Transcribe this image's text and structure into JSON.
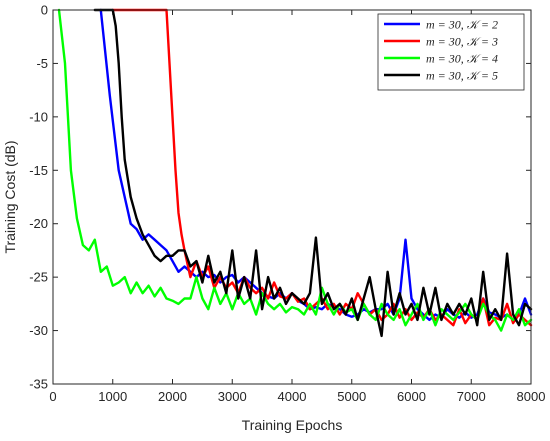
{
  "chart_data": {
    "type": "line",
    "title": "",
    "xlabel": "Training Epochs",
    "ylabel": "Training Cost (dB)",
    "xlim": [
      0,
      8000
    ],
    "ylim": [
      -35,
      0
    ],
    "xticks": [
      "0",
      "1000",
      "2000",
      "3000",
      "4000",
      "5000",
      "6000",
      "7000",
      "8000"
    ],
    "yticks": [
      "0",
      "-5",
      "-10",
      "-15",
      "-20",
      "-25",
      "-30",
      "-35"
    ],
    "xtick_values": [
      0,
      1000,
      2000,
      3000,
      4000,
      5000,
      6000,
      7000,
      8000
    ],
    "ytick_values": [
      0,
      -5,
      -10,
      -15,
      -20,
      -25,
      -30,
      -35
    ],
    "grid": false,
    "legend_position": "top-right",
    "series": [
      {
        "name": "m = 30, 𝒦 = 2",
        "color": "#0000ff",
        "x": [
          800,
          950,
          1100,
          1200,
          1300,
          1400,
          1500,
          1600,
          1700,
          1800,
          1900,
          2000,
          2100,
          2200,
          2300,
          2400,
          2500,
          2600,
          2700,
          2800,
          2900,
          3000,
          3100,
          3200,
          3300,
          3400,
          3500,
          3600,
          3700,
          3800,
          3900,
          4000,
          4100,
          4200,
          4300,
          4400,
          4500,
          4600,
          4700,
          4800,
          4900,
          5000,
          5100,
          5200,
          5300,
          5400,
          5500,
          5600,
          5700,
          5800,
          5900,
          6000,
          6100,
          6200,
          6300,
          6400,
          6500,
          6600,
          6700,
          6800,
          6900,
          7000,
          7100,
          7200,
          7300,
          7400,
          7500,
          7600,
          7700,
          7800,
          7900,
          8000
        ],
        "values": [
          0,
          -8,
          -15,
          -17.5,
          -20,
          -20.5,
          -21.5,
          -21,
          -21.5,
          -22,
          -22.5,
          -23.5,
          -24.5,
          -24,
          -24.5,
          -25,
          -24.5,
          -25,
          -24.8,
          -25.5,
          -25,
          -24.8,
          -25.5,
          -25,
          -25.5,
          -26,
          -26.5,
          -26.8,
          -27,
          -26.5,
          -27,
          -26.5,
          -27.2,
          -27.5,
          -28,
          -27.8,
          -28,
          -27.5,
          -27.8,
          -28,
          -28.5,
          -28.7,
          -28.5,
          -28,
          -28.3,
          -28,
          -28,
          -27.5,
          -28.5,
          -27,
          -21.5,
          -27,
          -28,
          -28.5,
          -29,
          -28.5,
          -28.8,
          -28,
          -28.5,
          -28.8,
          -28.3,
          -28.8,
          -28.5,
          -27,
          -28.3,
          -28.5,
          -28.8,
          -28.5,
          -29,
          -28.5,
          -27,
          -28.5
        ]
      },
      {
        "name": "m = 30, 𝒦 = 3",
        "color": "#ff0000",
        "x": [
          1000,
          1200,
          1400,
          1700,
          1900,
          1950,
          2000,
          2050,
          2100,
          2150,
          2200,
          2300,
          2400,
          2500,
          2600,
          2700,
          2800,
          2900,
          3000,
          3100,
          3200,
          3300,
          3400,
          3500,
          3600,
          3700,
          3800,
          3900,
          4000,
          4100,
          4200,
          4300,
          4400,
          4500,
          4600,
          4700,
          4800,
          4900,
          5000,
          5100,
          5200,
          5300,
          5400,
          5500,
          5600,
          5700,
          5800,
          5900,
          6000,
          6100,
          6200,
          6300,
          6400,
          6500,
          6600,
          6700,
          6800,
          6900,
          7000,
          7100,
          7200,
          7300,
          7400,
          7500,
          7600,
          7700,
          7800,
          7900,
          8000
        ],
        "values": [
          0,
          0,
          0,
          0,
          0,
          -5,
          -10,
          -15,
          -19,
          -21,
          -22.5,
          -25,
          -23.5,
          -25,
          -24,
          -26,
          -25,
          -26,
          -25.5,
          -26.5,
          -25,
          -26,
          -26.5,
          -26,
          -27,
          -25.5,
          -26.8,
          -27,
          -26.5,
          -27.3,
          -27,
          -28,
          -27.5,
          -27,
          -28,
          -27.5,
          -28.5,
          -27.5,
          -28,
          -26.5,
          -27.5,
          -28.5,
          -28,
          -29,
          -28.5,
          -27.5,
          -28.8,
          -28,
          -29,
          -28.3,
          -28.8,
          -28,
          -29,
          -28.5,
          -29,
          -29.5,
          -28,
          -29.3,
          -28.5,
          -29,
          -27,
          -29.5,
          -28.8,
          -29,
          -27.5,
          -29.3,
          -28.5,
          -29,
          -29.5
        ]
      },
      {
        "name": "m = 30, 𝒦 = 4",
        "color": "#00ff00",
        "x": [
          100,
          200,
          300,
          400,
          500,
          600,
          700,
          800,
          900,
          1000,
          1100,
          1200,
          1300,
          1400,
          1500,
          1600,
          1700,
          1800,
          1900,
          2000,
          2100,
          2200,
          2300,
          2400,
          2500,
          2600,
          2700,
          2800,
          2900,
          3000,
          3100,
          3200,
          3300,
          3400,
          3500,
          3600,
          3700,
          3800,
          3900,
          4000,
          4100,
          4200,
          4300,
          4400,
          4500,
          4600,
          4700,
          4800,
          4900,
          5000,
          5100,
          5200,
          5300,
          5400,
          5500,
          5600,
          5700,
          5800,
          5900,
          6000,
          6100,
          6200,
          6300,
          6400,
          6500,
          6600,
          6700,
          6800,
          6900,
          7000,
          7100,
          7200,
          7300,
          7400,
          7500,
          7600,
          7700,
          7800,
          7900,
          8000
        ],
        "values": [
          0,
          -5,
          -15,
          -19.5,
          -22,
          -22.5,
          -21.5,
          -24.5,
          -24,
          -25.8,
          -25.5,
          -25,
          -26.5,
          -25.5,
          -26.5,
          -25.8,
          -26.8,
          -26,
          -27,
          -27.2,
          -27.5,
          -27,
          -27,
          -25,
          -27,
          -28,
          -26,
          -27.5,
          -26.5,
          -28,
          -26.5,
          -27.5,
          -27,
          -28.5,
          -26.5,
          -27.5,
          -28,
          -27.5,
          -28.3,
          -27.8,
          -28,
          -28.5,
          -27.5,
          -28.5,
          -26,
          -27.5,
          -28.5,
          -27.5,
          -28.3,
          -28,
          -29,
          -27.5,
          -28.5,
          -29,
          -27.5,
          -28.5,
          -29,
          -28,
          -29.5,
          -28.5,
          -27.5,
          -29,
          -28,
          -29.5,
          -28,
          -28.5,
          -29,
          -28.3,
          -27.5,
          -28.5,
          -29,
          -27.5,
          -28.5,
          -29,
          -30,
          -28.5,
          -29,
          -28,
          -29.5,
          -29
        ]
      },
      {
        "name": "m = 30, 𝒦 = 5",
        "color": "#000000",
        "x": [
          700,
          1000,
          1050,
          1100,
          1150,
          1200,
          1300,
          1400,
          1500,
          1600,
          1700,
          1800,
          1900,
          2000,
          2100,
          2200,
          2300,
          2400,
          2500,
          2600,
          2700,
          2800,
          2900,
          3000,
          3100,
          3200,
          3300,
          3400,
          3500,
          3600,
          3700,
          3800,
          3900,
          4000,
          4100,
          4200,
          4300,
          4400,
          4500,
          4600,
          4700,
          4800,
          4900,
          5000,
          5100,
          5200,
          5300,
          5400,
          5500,
          5600,
          5700,
          5800,
          5900,
          6000,
          6100,
          6200,
          6300,
          6400,
          6500,
          6600,
          6700,
          6800,
          6900,
          7000,
          7100,
          7200,
          7300,
          7400,
          7500,
          7600,
          7700,
          7800,
          7900,
          8000
        ],
        "values": [
          0,
          0,
          -1.5,
          -5,
          -10,
          -14,
          -17.5,
          -19.5,
          -21,
          -22,
          -23,
          -23.5,
          -23,
          -23,
          -22.5,
          -22.5,
          -24,
          -23.5,
          -25.5,
          -23,
          -25.5,
          -24.5,
          -26.5,
          -22.5,
          -27,
          -25,
          -27,
          -22.5,
          -28,
          -25,
          -27,
          -26,
          -27.5,
          -26.5,
          -27,
          -27.5,
          -26.5,
          -21.3,
          -27.5,
          -26.5,
          -28,
          -27.5,
          -28.5,
          -27,
          -29,
          -27,
          -25,
          -28,
          -30.5,
          -24.5,
          -28.5,
          -26.5,
          -28.5,
          -27.5,
          -29,
          -26,
          -28.5,
          -26,
          -29,
          -27.5,
          -28.5,
          -27.5,
          -28.5,
          -27,
          -29.5,
          -24.5,
          -29,
          -28,
          -29,
          -22.8,
          -28.5,
          -29.5,
          -27.5,
          -28
        ]
      }
    ]
  }
}
